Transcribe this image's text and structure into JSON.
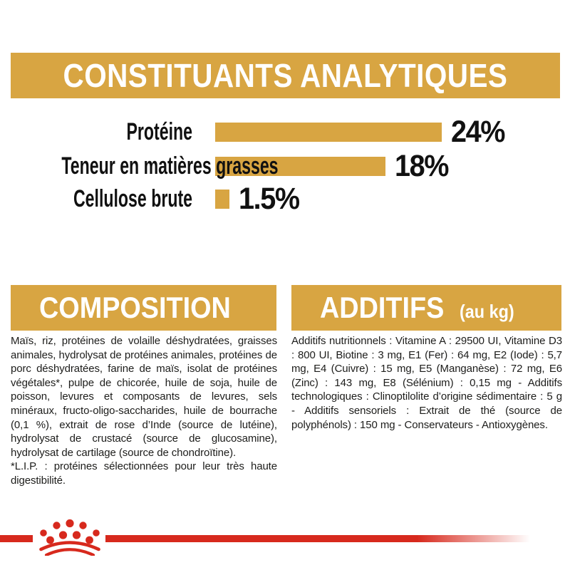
{
  "title": "CONSTITUANTS ANALYTIQUES",
  "chart_data": {
    "type": "bar",
    "orientation": "horizontal",
    "title": "CONSTITUANTS ANALYTIQUES",
    "categories": [
      "Protéine",
      "Teneur en matières grasses",
      "Cellulose brute"
    ],
    "values": [
      24,
      18,
      1.5
    ],
    "value_labels": [
      "24%",
      "18%",
      "1.5%"
    ],
    "unit": "%",
    "xlim": [
      0,
      24
    ],
    "grid": false,
    "legend": false,
    "bar_color": "#d8a542"
  },
  "composition": {
    "header": "COMPOSITION",
    "body_main": "Maïs, riz, protéines de volaille déshydratées, graisses animales, hydrolysat de protéines animales, protéines de porc déshydratées, farine de maïs, isolat de protéines végétales*, pulpe de chicorée, huile de soja, huile de poisson, levures et composants de levures, sels minéraux, fructo-oligo-saccharides, huile de bourrache (0,1 %), extrait de rose d’Inde (source de lutéine), hydrolysat de crustacé (source de glucosamine), hydrolysat de cartilage (source de chondroïtine).",
    "footnote": "*L.I.P. : protéines sélectionnées pour leur très haute digestibilité."
  },
  "additifs": {
    "header": "ADDITIFS",
    "header_suffix": "(au kg)",
    "body": "Additifs nutritionnels : Vitamine A : 29500 UI, Vitamine D3 : 800 UI, Biotine : 3 mg, E1 (Fer) : 64 mg, E2 (Iode) : 5,7 mg, E4 (Cuivre) : 15 mg, E5 (Manganèse) : 72 mg, E6 (Zinc) : 143 mg, E8 (Sélénium) : 0,15 mg - Additifs technologiques : Clinoptilolite d’origine sédimentaire : 5 g - Additifs sensoriels : Extrait de thé (source de polyphénols) : 150 mg - Conservateurs - Antioxygènes."
  },
  "colors": {
    "gold": "#d8a542",
    "red": "#d7291d",
    "text": "#1d1d1b"
  },
  "footer": {
    "logo": "royal-canin-crown"
  }
}
